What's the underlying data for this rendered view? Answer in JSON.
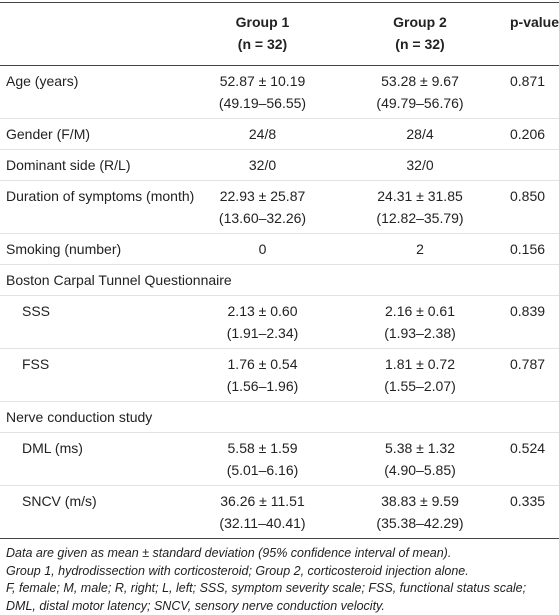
{
  "table": {
    "header": {
      "group1": [
        "Group 1",
        "(n = 32)"
      ],
      "group2": [
        "Group 2",
        "(n = 32)"
      ],
      "p": "p-value"
    },
    "rows": [
      {
        "label": "Age (years)",
        "g1": [
          "52.87 ± 10.19",
          "(49.19–56.55)"
        ],
        "g2": [
          "53.28 ± 9.67",
          "(49.79–56.76)"
        ],
        "p": "0.871"
      },
      {
        "label": "Gender (F/M)",
        "g1": [
          "24/8"
        ],
        "g2": [
          "28/4"
        ],
        "p": "0.206"
      },
      {
        "label": "Dominant side (R/L)",
        "g1": [
          "32/0"
        ],
        "g2": [
          "32/0"
        ],
        "p": ""
      },
      {
        "label": "Duration of symptoms (month)",
        "g1": [
          "22.93 ± 25.87",
          "(13.60–32.26)"
        ],
        "g2": [
          "24.31 ± 31.85",
          "(12.82–35.79)"
        ],
        "p": "0.850"
      },
      {
        "label": "Smoking (number)",
        "g1": [
          "0"
        ],
        "g2": [
          "2"
        ],
        "p": "0.156"
      },
      {
        "section": "Boston Carpal Tunnel Questionnaire"
      },
      {
        "label": "SSS",
        "indent": true,
        "g1": [
          "2.13 ± 0.60",
          "(1.91–2.34)"
        ],
        "g2": [
          "2.16 ± 0.61",
          "(1.93–2.38)"
        ],
        "p": "0.839"
      },
      {
        "label": "FSS",
        "indent": true,
        "g1": [
          "1.76 ± 0.54",
          "(1.56–1.96)"
        ],
        "g2": [
          "1.81 ± 0.72",
          "(1.55–2.07)"
        ],
        "p": "0.787"
      },
      {
        "section": "Nerve conduction study"
      },
      {
        "label": "DML (ms)",
        "indent": true,
        "g1": [
          "5.58 ± 1.59",
          "(5.01–6.16)"
        ],
        "g2": [
          "5.38 ± 1.32",
          "(4.90–5.85)"
        ],
        "p": "0.524"
      },
      {
        "label": "SNCV (m/s)",
        "indent": true,
        "g1": [
          "36.26 ± 11.51",
          "(32.11–40.41)"
        ],
        "g2": [
          "38.83 ± 9.59",
          "(35.38–42.29)"
        ],
        "p": "0.335"
      }
    ],
    "footnotes": [
      "Data are given as mean ± standard deviation (95% confidence interval of mean).",
      "Group 1, hydrodissection with corticosteroid; Group 2, corticosteroid injection alone.",
      "F, female; M, male; R, right; L, left; SSS, symptom severity scale; FSS, functional status scale; DML, distal motor latency; SNCV, sensory nerve conduction velocity."
    ]
  }
}
